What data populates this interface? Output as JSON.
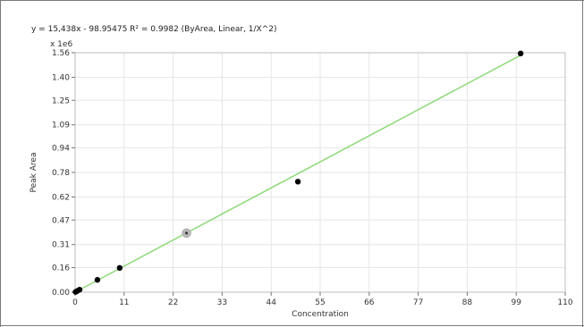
{
  "equation_text": "y = 15,438x - 98.95475    R² = 0.9982  (ByArea, Linear, 1/X^2)",
  "chart_data": {
    "type": "scatter",
    "title": "",
    "xlabel": "Concentration",
    "ylabel": "Peak Area",
    "y_multiplier_label": "x 1e6",
    "xlim": [
      0,
      110
    ],
    "ylim": [
      0,
      1.56
    ],
    "x_ticks": [
      0,
      11,
      22,
      33,
      44,
      55,
      66,
      77,
      88,
      99,
      110
    ],
    "y_ticks": [
      0.0,
      0.16,
      0.31,
      0.47,
      0.62,
      0.78,
      0.94,
      1.09,
      1.25,
      1.4,
      1.56
    ],
    "y_tick_labels": [
      "0.00",
      "0.16",
      "0.31",
      "0.47",
      "0.62",
      "0.78",
      "0.94",
      "1.09",
      "1.25",
      "1.40",
      "1.56"
    ],
    "grid": true,
    "fit": {
      "slope": 15438,
      "intercept": -98.95475,
      "r2": 0.9982,
      "x_range": [
        0,
        100
      ],
      "color": "#8fd97a"
    },
    "points": [
      {
        "x": 0.1,
        "y": 0.0016,
        "style": "normal"
      },
      {
        "x": 0.5,
        "y": 0.008,
        "style": "normal"
      },
      {
        "x": 1,
        "y": 0.016,
        "style": "normal"
      },
      {
        "x": 5,
        "y": 0.08,
        "style": "normal"
      },
      {
        "x": 10,
        "y": 0.158,
        "style": "normal"
      },
      {
        "x": 25,
        "y": 0.385,
        "style": "highlighted"
      },
      {
        "x": 50,
        "y": 0.72,
        "style": "normal"
      },
      {
        "x": 100,
        "y": 1.555,
        "style": "normal"
      }
    ]
  }
}
